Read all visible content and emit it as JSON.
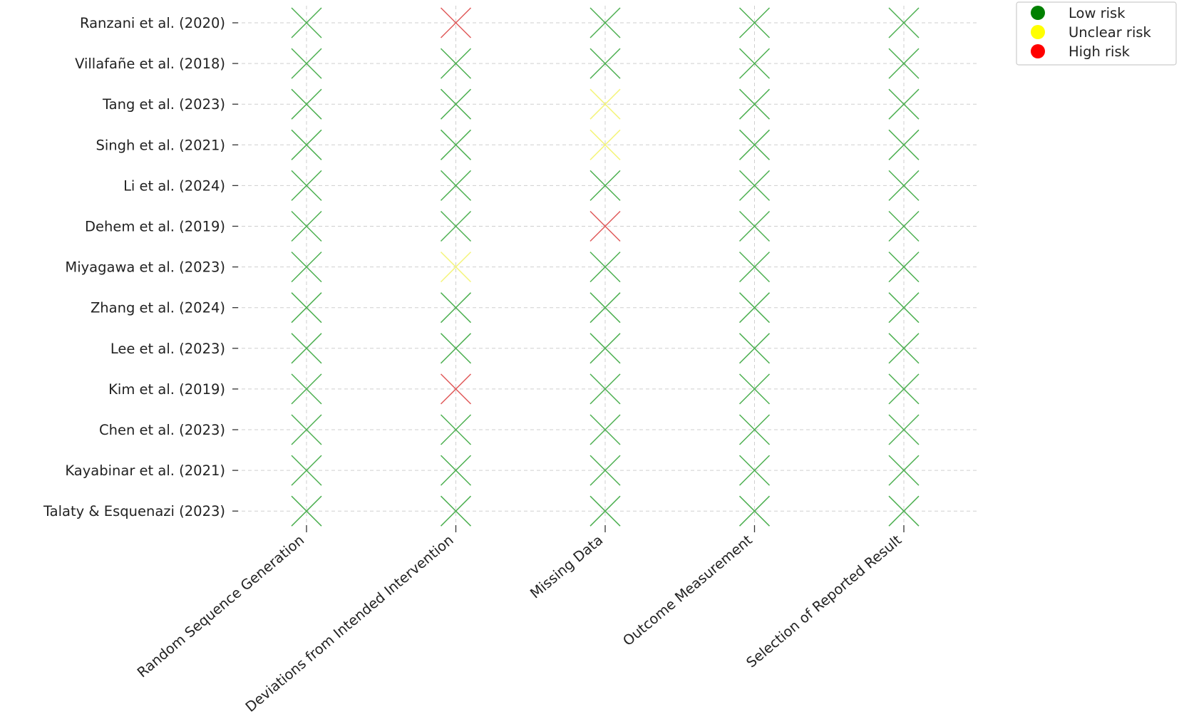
{
  "chart_data": {
    "type": "heatmap",
    "title": "",
    "xlabel": "",
    "ylabel": "",
    "grid": true,
    "legend_position": "top-right",
    "marker": "x",
    "categories": [
      "Random Sequence Generation",
      "Deviations from Intended Intervention",
      "Missing Data",
      "Outcome Measurement",
      "Selection of Reported Result"
    ],
    "studies": [
      "Ranzani et al. (2020)",
      "Villafañe et al. (2018)",
      "Tang et al. (2023)",
      "Singh et al. (2021)",
      "Li et al. (2024)",
      "Dehem et al. (2019)",
      "Miyagawa et al. (2023)",
      "Zhang et al. (2024)",
      "Lee et al. (2023)",
      "Kim et al. (2019)",
      "Chen et al. (2023)",
      "Kayabinar et al. (2021)",
      "Talaty & Esquenazi (2023)"
    ],
    "ratings": [
      [
        "low",
        "high",
        "low",
        "low",
        "low"
      ],
      [
        "low",
        "low",
        "low",
        "low",
        "low"
      ],
      [
        "low",
        "low",
        "unclear",
        "low",
        "low"
      ],
      [
        "low",
        "low",
        "unclear",
        "low",
        "low"
      ],
      [
        "low",
        "low",
        "low",
        "low",
        "low"
      ],
      [
        "low",
        "low",
        "high",
        "low",
        "low"
      ],
      [
        "low",
        "unclear",
        "low",
        "low",
        "low"
      ],
      [
        "low",
        "low",
        "low",
        "low",
        "low"
      ],
      [
        "low",
        "low",
        "low",
        "low",
        "low"
      ],
      [
        "low",
        "high",
        "low",
        "low",
        "low"
      ],
      [
        "low",
        "low",
        "low",
        "low",
        "low"
      ],
      [
        "low",
        "low",
        "low",
        "low",
        "low"
      ],
      [
        "low",
        "low",
        "low",
        "low",
        "low"
      ]
    ],
    "legend": [
      {
        "key": "low",
        "label": "Low risk",
        "color": "#008000"
      },
      {
        "key": "unclear",
        "label": "Unclear risk",
        "color": "#ffff00"
      },
      {
        "key": "high",
        "label": "High risk",
        "color": "#ff0000"
      }
    ]
  }
}
